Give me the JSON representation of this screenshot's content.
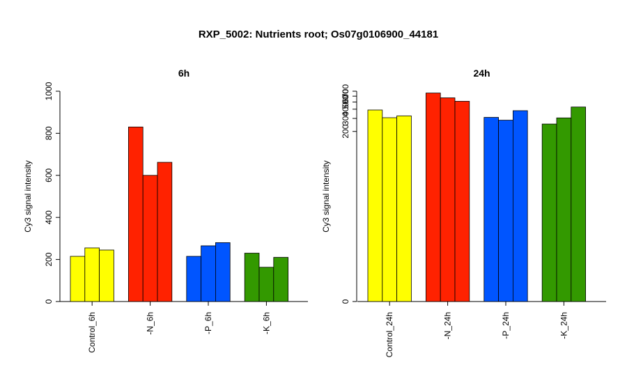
{
  "title": "RXP_5002: Nutrients root; Os07g0106900_44181",
  "chart_data": [
    {
      "type": "bar",
      "title": "6h",
      "ylabel": "Cy3 signal intensity",
      "ylim": [
        0,
        1000
      ],
      "yticks": [
        0,
        200,
        400,
        600,
        800,
        1000
      ],
      "scale": "linear",
      "groups": [
        {
          "label": "Control_6h",
          "color": "#ffff00",
          "values": [
            215,
            255,
            245
          ]
        },
        {
          "label": "-N_6h",
          "color": "#ff2200",
          "values": [
            830,
            600,
            662
          ]
        },
        {
          "label": "-P_6h",
          "color": "#0055ff",
          "values": [
            215,
            265,
            280
          ]
        },
        {
          "label": "-K_6h",
          "color": "#339900",
          "values": [
            230,
            163,
            210
          ]
        }
      ]
    },
    {
      "type": "bar",
      "title": "24h",
      "ylabel": "Cy3 signal intensity",
      "ylim": [
        0,
        700
      ],
      "yticks": [
        0,
        200,
        300,
        400,
        500,
        600,
        700
      ],
      "scale": "log",
      "groups": [
        {
          "label": "Control_24h",
          "color": "#ffff00",
          "values": [
            390,
            307,
            325
          ]
        },
        {
          "label": "-N_24h",
          "color": "#ff2200",
          "values": [
            662,
            570,
            512
          ]
        },
        {
          "label": "-P_24h",
          "color": "#0055ff",
          "values": [
            310,
            284,
            382
          ]
        },
        {
          "label": "-K_24h",
          "color": "#339900",
          "values": [
            252,
            305,
            428
          ]
        }
      ]
    }
  ]
}
